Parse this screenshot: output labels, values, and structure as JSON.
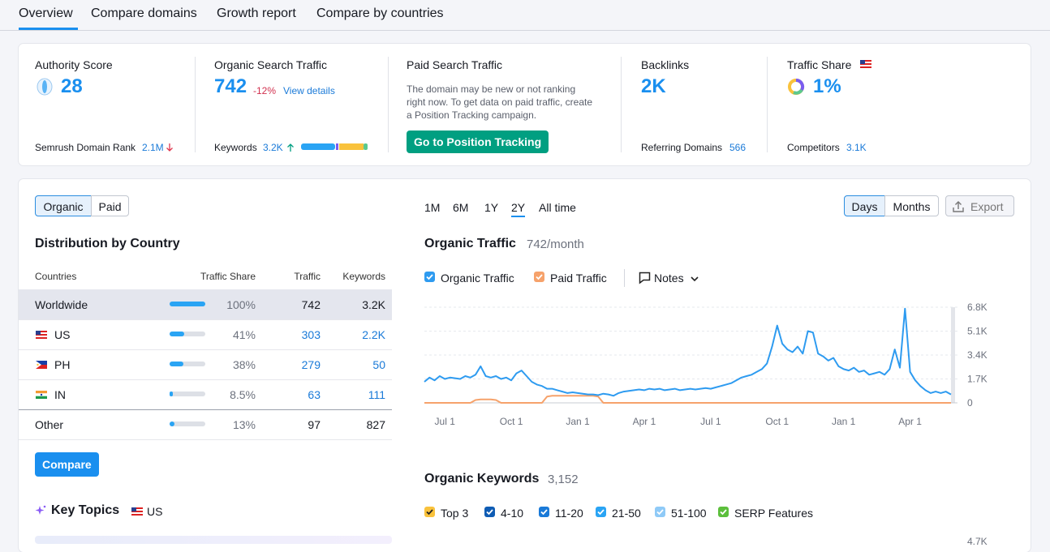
{
  "tabs": [
    "Overview",
    "Compare domains",
    "Growth report",
    "Compare by countries"
  ],
  "metrics": {
    "authority_score": {
      "label": "Authority Score",
      "value": "28",
      "footer_label": "Semrush Domain Rank",
      "footer_value": "2.1M"
    },
    "organic_search_traffic": {
      "label": "Organic Search Traffic",
      "value": "742",
      "change": "-12%",
      "link": "View details",
      "footer_label": "Keywords",
      "footer_value": "3.2K"
    },
    "paid_search_traffic": {
      "label": "Paid Search Traffic",
      "message": "The domain may be new or not ranking right now. To get data on paid traffic, create a Position Tracking campaign.",
      "button": "Go to Position Tracking"
    },
    "backlinks": {
      "label": "Backlinks",
      "value": "2K",
      "footer_label": "Referring Domains",
      "footer_value": "566"
    },
    "traffic_share": {
      "label": "Traffic Share",
      "value": "1%",
      "footer_label": "Competitors",
      "footer_value": "3.1K"
    }
  },
  "source_toggle": [
    "Organic",
    "Paid"
  ],
  "distribution": {
    "title": "Distribution by Country",
    "columns": [
      "Countries",
      "Traffic Share",
      "Traffic",
      "Keywords"
    ],
    "rows": [
      [
        "Worldwide",
        "100%",
        "742",
        "3.2K"
      ],
      [
        "US",
        "41%",
        "303",
        "2.2K"
      ],
      [
        "PH",
        "38%",
        "279",
        "50"
      ],
      [
        "IN",
        "8.5%",
        "63",
        "111"
      ],
      [
        "Other",
        "13%",
        "97",
        "827"
      ]
    ],
    "button": "Compare"
  },
  "key_topics": {
    "title": "Key Topics",
    "country": "US"
  },
  "periods": [
    "1M",
    "6M",
    "1Y",
    "2Y",
    "All time"
  ],
  "granularity": [
    "Days",
    "Months"
  ],
  "export": "Export",
  "chart_data": {
    "type": "line",
    "title": "Organic Traffic",
    "subtitle": "742/month",
    "notes": "Notes",
    "categories": [
      null,
      null,
      null,
      null,
      "Jul 1",
      null,
      null,
      null,
      null,
      null,
      null,
      null,
      null,
      null,
      null,
      null,
      null,
      "Oct 1",
      null,
      null,
      null,
      null,
      null,
      null,
      null,
      null,
      null,
      null,
      null,
      null,
      "Jan 1",
      null,
      null,
      null,
      null,
      null,
      null,
      null,
      null,
      null,
      null,
      null,
      null,
      "Apr 1",
      null,
      null,
      null,
      null,
      null,
      null,
      null,
      null,
      null,
      null,
      null,
      null,
      "Jul 1",
      null,
      null,
      null,
      null,
      null,
      null,
      null,
      null,
      null,
      null,
      null,
      null,
      "Oct 1",
      null,
      null,
      null,
      null,
      null,
      null,
      null,
      null,
      null,
      null,
      null,
      null,
      "Jan 1",
      null,
      null,
      null,
      null,
      null,
      null,
      null,
      null,
      null,
      null,
      null,
      null,
      "Apr 1",
      null,
      null,
      null,
      null,
      null,
      null,
      null,
      null
    ],
    "series": [
      {
        "name": "Organic Traffic",
        "color": "#2e9bf0",
        "values": [
          1500,
          1800,
          1600,
          1900,
          1700,
          1800,
          1750,
          1700,
          1900,
          1800,
          2000,
          2600,
          1900,
          1800,
          1900,
          1700,
          1800,
          1600,
          2100,
          2300,
          1900,
          1500,
          1300,
          1200,
          1000,
          1000,
          900,
          800,
          700,
          750,
          700,
          650,
          600,
          600,
          550,
          650,
          600,
          500,
          700,
          800,
          850,
          900,
          950,
          900,
          1000,
          950,
          1000,
          900,
          950,
          1000,
          900,
          950,
          1000,
          950,
          1000,
          1050,
          1000,
          1100,
          1200,
          1300,
          1400,
          1600,
          1800,
          1900,
          2000,
          2200,
          2400,
          2800,
          4000,
          5500,
          4200,
          3800,
          3600,
          4000,
          3500,
          5100,
          5000,
          3500,
          3300,
          3000,
          3200,
          2600,
          2400,
          2300,
          2500,
          2200,
          2300,
          2000,
          2100,
          2200,
          2000,
          2400,
          3800,
          2500,
          6700,
          2200,
          1600,
          1200,
          900,
          700,
          800,
          700,
          800,
          600
        ]
      },
      {
        "name": "Paid Traffic",
        "color": "#f6a26b",
        "values": [
          0,
          0,
          0,
          0,
          0,
          0,
          0,
          0,
          0,
          0,
          200,
          250,
          250,
          250,
          200,
          0,
          0,
          0,
          0,
          0,
          0,
          0,
          0,
          0,
          450,
          500,
          500,
          500,
          500,
          500,
          500,
          500,
          500,
          500,
          450,
          0,
          0,
          0,
          0,
          0,
          0,
          0,
          0,
          0,
          0,
          0,
          0,
          0,
          0,
          0,
          0,
          0,
          0,
          0,
          0,
          0,
          0,
          0,
          0,
          0,
          0,
          0,
          0,
          0,
          0,
          0,
          0,
          0,
          0,
          0,
          0,
          0,
          0,
          0,
          0,
          0,
          0,
          0,
          0,
          0,
          0,
          0,
          0,
          0,
          0,
          0,
          0,
          0,
          0,
          0,
          0,
          0,
          0,
          0,
          0,
          0,
          0,
          0,
          0,
          0,
          0,
          0,
          0,
          0
        ]
      }
    ],
    "ylim": [
      0,
      6800
    ],
    "yticks": [
      0,
      {
        "value": 1700,
        "label": "1.7K"
      },
      {
        "value": 3400,
        "label": "3.4K"
      },
      {
        "value": 5100,
        "label": "5.1K"
      },
      {
        "value": 6800,
        "label": "6.8K"
      }
    ],
    "grid": true
  },
  "organic_keywords": {
    "title": "Organic Keywords",
    "value": "3,152",
    "filters": [
      "Top 3",
      "4-10",
      "11-20",
      "21-50",
      "51-100",
      "SERP Features"
    ],
    "axis_top_label": "4.7K"
  }
}
